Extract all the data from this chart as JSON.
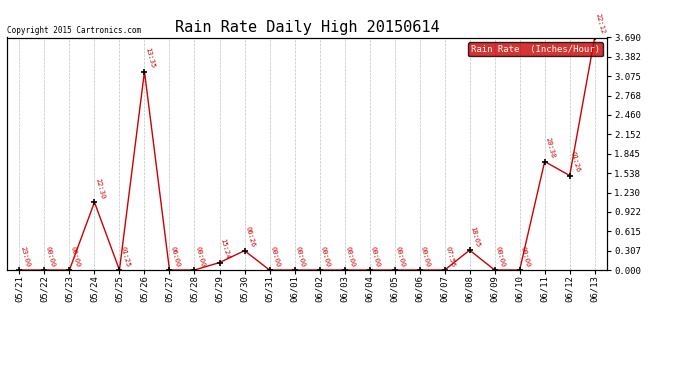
{
  "title": "Rain Rate Daily High 20150614",
  "copyright": "Copyright 2015 Cartronics.com",
  "legend_label": "Rain Rate  (Inches/Hour)",
  "ylabel_right_values": [
    0.0,
    0.307,
    0.615,
    0.922,
    1.23,
    1.538,
    1.845,
    2.152,
    2.46,
    2.768,
    3.075,
    3.382,
    3.69
  ],
  "x_labels": [
    "05/21",
    "05/22",
    "05/23",
    "05/24",
    "05/25",
    "05/26",
    "05/27",
    "05/28",
    "05/29",
    "05/30",
    "05/31",
    "06/01",
    "06/02",
    "06/03",
    "06/04",
    "06/05",
    "06/06",
    "06/07",
    "06/08",
    "06/09",
    "06/10",
    "06/11",
    "06/12",
    "06/13"
  ],
  "x_indices": [
    0,
    1,
    2,
    3,
    4,
    5,
    6,
    7,
    8,
    9,
    10,
    11,
    12,
    13,
    14,
    15,
    16,
    17,
    18,
    19,
    20,
    21,
    22,
    23
  ],
  "y_values": [
    0.0,
    0.0,
    0.0,
    1.076,
    0.0,
    3.15,
    0.0,
    0.0,
    0.118,
    0.307,
    0.0,
    0.0,
    0.0,
    0.0,
    0.0,
    0.0,
    0.0,
    0.0,
    0.315,
    0.0,
    0.0,
    1.722,
    1.499,
    3.69
  ],
  "time_labels": [
    "23:00",
    "00:00",
    "06:00",
    "22:30",
    "01:25",
    "13:35",
    "06:00",
    "00:00",
    "15:24",
    "06:26",
    "00:00",
    "00:00",
    "00:00",
    "00:00",
    "00:00",
    "00:00",
    "00:00",
    "07:56",
    "18:05",
    "00:00",
    "00:00",
    "20:38",
    "01:26",
    "22:12"
  ],
  "line_color": "#cc0000",
  "marker_color": "#000000",
  "bg_color": "#ffffff",
  "grid_color": "#bbbbbb",
  "ylim": [
    0.0,
    3.69
  ],
  "title_fontsize": 11,
  "legend_bg": "#cc0000",
  "legend_text_color": "#ffffff"
}
